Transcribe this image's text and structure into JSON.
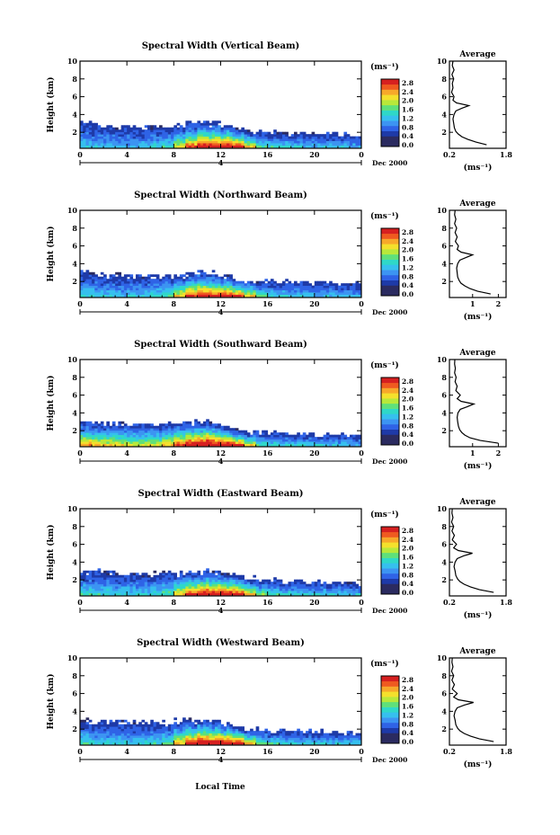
{
  "figure": {
    "xlabel": "Local Time",
    "date_label": "Dec 2000",
    "day_marker": "4",
    "colorbar_unit": "(ms⁻¹)",
    "average_title": "Average",
    "average_xunit": "(ms⁻¹)",
    "colormap": [
      "#2b2b60",
      "#1e3aa8",
      "#2f63e6",
      "#3c94f2",
      "#36c0ee",
      "#2fd8c8",
      "#5fe07a",
      "#b8e83a",
      "#f4e02c",
      "#f7a82a",
      "#ef5a20",
      "#d62020"
    ]
  },
  "chart_data": [
    {
      "type": "heatmap",
      "title": "Spectral Width (Vertical Beam)",
      "ylabel": "Height (km)",
      "x_ticks": [
        "0",
        "4",
        "8",
        "12",
        "16",
        "20",
        "0"
      ],
      "xlim": [
        0,
        24
      ],
      "y_ticks": [
        "2",
        "4",
        "6",
        "8",
        "10"
      ],
      "ylim": [
        0.2,
        10
      ],
      "colorbar_ticks": [
        "2.8",
        "2.4",
        "2.0",
        "1.6",
        "1.2",
        "0.8",
        "0.4",
        "0.0"
      ],
      "colorbar_range": [
        0,
        2.8
      ],
      "layer_top_km": [
        3.0,
        2.8,
        2.7,
        2.6,
        2.6,
        2.5,
        2.6,
        2.7,
        2.8,
        3.0,
        3.2,
        3.0,
        2.8,
        2.4,
        2.1,
        2.0,
        2.0,
        1.9,
        1.9,
        1.8,
        1.8,
        1.8,
        1.7,
        1.6
      ],
      "peak_width_ms": [
        0.8,
        0.7,
        0.7,
        0.6,
        0.6,
        0.7,
        0.8,
        1.0,
        1.6,
        2.2,
        2.6,
        2.5,
        2.6,
        2.4,
        1.8,
        1.2,
        0.9,
        0.8,
        0.8,
        0.7,
        0.7,
        0.7,
        0.7,
        0.6
      ],
      "average": {
        "x_ticks": [
          "0.2",
          "1.8"
        ],
        "xlim": [
          0.2,
          1.8
        ],
        "y_ticks": [
          "2",
          "4",
          "6",
          "8",
          "10"
        ],
        "ylim": [
          0.2,
          10
        ],
        "height_km": [
          0.6,
          0.9,
          1.2,
          1.5,
          1.8,
          2.1,
          2.5,
          3.0,
          3.5,
          4.0,
          4.4,
          4.7,
          5.0,
          5.3,
          5.6,
          6.0,
          6.5,
          7.0,
          7.5,
          8.0,
          8.5,
          9.0,
          9.5,
          10.0
        ],
        "width_ms": [
          1.25,
          0.95,
          0.72,
          0.55,
          0.45,
          0.38,
          0.34,
          0.32,
          0.3,
          0.33,
          0.38,
          0.55,
          0.75,
          0.4,
          0.3,
          0.33,
          0.26,
          0.3,
          0.28,
          0.32,
          0.27,
          0.33,
          0.28,
          0.3
        ]
      }
    },
    {
      "type": "heatmap",
      "title": "Spectral Width (Northward Beam)",
      "ylabel": "Height (km)",
      "x_ticks": [
        "0",
        "4",
        "8",
        "12",
        "16",
        "20",
        "0"
      ],
      "xlim": [
        0,
        24
      ],
      "y_ticks": [
        "2",
        "4",
        "6",
        "8",
        "10"
      ],
      "ylim": [
        0.2,
        10
      ],
      "colorbar_ticks": [
        "2.8",
        "2.4",
        "2.0",
        "1.6",
        "1.2",
        "0.8",
        "0.4",
        "0.0"
      ],
      "colorbar_range": [
        0,
        2.8
      ],
      "layer_top_km": [
        3.0,
        2.9,
        2.8,
        2.7,
        2.7,
        2.6,
        2.6,
        2.7,
        2.8,
        3.0,
        3.1,
        2.9,
        2.6,
        2.2,
        2.0,
        1.9,
        1.9,
        1.9,
        1.9,
        1.8,
        1.8,
        1.8,
        1.8,
        1.7
      ],
      "peak_width_ms": [
        0.9,
        0.8,
        0.8,
        0.7,
        0.7,
        0.8,
        0.9,
        1.1,
        1.7,
        2.3,
        2.5,
        2.4,
        2.5,
        2.3,
        1.7,
        1.1,
        0.9,
        0.8,
        0.8,
        0.8,
        0.7,
        0.7,
        0.7,
        0.6
      ],
      "average": {
        "x_ticks": [
          "1",
          "2"
        ],
        "xlim": [
          0.1,
          2.3
        ],
        "y_ticks": [
          "2",
          "4",
          "6",
          "8",
          "10"
        ],
        "ylim": [
          0.2,
          10
        ],
        "height_km": [
          0.6,
          0.9,
          1.2,
          1.5,
          1.8,
          2.1,
          2.5,
          3.0,
          3.5,
          4.0,
          4.4,
          4.7,
          5.0,
          5.3,
          5.6,
          6.0,
          6.5,
          7.0,
          7.5,
          8.0,
          8.5,
          9.0,
          9.5,
          10.0
        ],
        "width_ms": [
          1.7,
          1.2,
          0.9,
          0.7,
          0.55,
          0.48,
          0.42,
          0.4,
          0.38,
          0.42,
          0.5,
          0.75,
          1.0,
          0.55,
          0.4,
          0.45,
          0.33,
          0.4,
          0.32,
          0.38,
          0.3,
          0.35,
          0.3,
          0.32
        ]
      }
    },
    {
      "type": "heatmap",
      "title": "Spectral Width (Southward Beam)",
      "ylabel": "Height (km)",
      "x_ticks": [
        "0",
        "4",
        "8",
        "12",
        "16",
        "20",
        "0"
      ],
      "xlim": [
        0,
        24
      ],
      "y_ticks": [
        "2",
        "4",
        "6",
        "8",
        "10"
      ],
      "ylim": [
        0.2,
        10
      ],
      "colorbar_ticks": [
        "2.8",
        "2.4",
        "2.0",
        "1.6",
        "1.2",
        "0.8",
        "0.4",
        "0.0"
      ],
      "colorbar_range": [
        0,
        2.8
      ],
      "layer_top_km": [
        3.0,
        2.9,
        2.8,
        2.8,
        2.7,
        2.7,
        2.7,
        2.8,
        2.9,
        3.0,
        3.1,
        2.8,
        2.4,
        2.1,
        1.9,
        1.8,
        1.7,
        1.6,
        1.6,
        1.5,
        1.5,
        1.5,
        1.5,
        1.4
      ],
      "peak_width_ms": [
        2.0,
        1.8,
        1.7,
        1.6,
        1.5,
        1.5,
        1.6,
        1.8,
        2.2,
        2.7,
        2.8,
        2.6,
        2.6,
        2.4,
        1.6,
        1.0,
        0.9,
        0.8,
        0.8,
        0.8,
        0.8,
        0.7,
        0.7,
        0.6
      ],
      "average": {
        "x_ticks": [
          "1",
          "2"
        ],
        "xlim": [
          0.1,
          2.3
        ],
        "y_ticks": [
          "2",
          "4",
          "6",
          "8",
          "10"
        ],
        "ylim": [
          0.2,
          10
        ],
        "height_km": [
          0.6,
          0.9,
          1.2,
          1.5,
          1.8,
          2.1,
          2.5,
          3.0,
          3.5,
          4.0,
          4.4,
          4.7,
          5.0,
          5.3,
          5.6,
          6.0,
          6.5,
          7.0,
          7.5,
          8.0,
          8.5,
          9.0,
          9.5,
          10.0
        ],
        "width_ms": [
          2.0,
          1.3,
          0.9,
          0.7,
          0.58,
          0.5,
          0.45,
          0.42,
          0.4,
          0.43,
          0.52,
          0.8,
          1.05,
          0.55,
          0.4,
          0.52,
          0.35,
          0.4,
          0.32,
          0.36,
          0.3,
          0.33,
          0.3,
          0.31
        ]
      }
    },
    {
      "type": "heatmap",
      "title": "Spectral Width (Eastward Beam)",
      "ylabel": "Height (km)",
      "x_ticks": [
        "0",
        "4",
        "8",
        "12",
        "16",
        "20",
        "0"
      ],
      "xlim": [
        0,
        24
      ],
      "y_ticks": [
        "2",
        "4",
        "6",
        "8",
        "10"
      ],
      "ylim": [
        0.2,
        10
      ],
      "colorbar_ticks": [
        "2.8",
        "2.4",
        "2.0",
        "1.6",
        "1.2",
        "0.8",
        "0.4",
        "0.0"
      ],
      "colorbar_range": [
        0,
        2.8
      ],
      "layer_top_km": [
        3.0,
        2.9,
        2.8,
        2.8,
        2.7,
        2.7,
        2.7,
        2.8,
        2.8,
        2.9,
        3.1,
        3.0,
        2.8,
        2.5,
        2.2,
        2.0,
        1.9,
        1.9,
        1.8,
        1.8,
        1.8,
        1.7,
        1.7,
        1.6
      ],
      "peak_width_ms": [
        1.0,
        0.9,
        0.9,
        0.8,
        0.8,
        0.8,
        0.9,
        1.1,
        1.7,
        2.3,
        2.6,
        2.5,
        2.6,
        2.4,
        1.8,
        1.2,
        1.0,
        0.9,
        0.8,
        0.8,
        0.8,
        0.7,
        0.7,
        0.7
      ],
      "average": {
        "x_ticks": [
          "0.2",
          "1.8"
        ],
        "xlim": [
          0.2,
          1.8
        ],
        "y_ticks": [
          "2",
          "4",
          "6",
          "8",
          "10"
        ],
        "ylim": [
          0.2,
          10
        ],
        "height_km": [
          0.6,
          0.9,
          1.2,
          1.5,
          1.8,
          2.1,
          2.5,
          3.0,
          3.5,
          4.0,
          4.4,
          4.7,
          5.0,
          5.3,
          5.6,
          6.0,
          6.5,
          7.0,
          7.5,
          8.0,
          8.5,
          9.0,
          9.5,
          10.0
        ],
        "width_ms": [
          1.45,
          1.05,
          0.8,
          0.62,
          0.5,
          0.43,
          0.38,
          0.36,
          0.33,
          0.36,
          0.42,
          0.6,
          0.85,
          0.45,
          0.32,
          0.4,
          0.28,
          0.34,
          0.27,
          0.32,
          0.26,
          0.3,
          0.27,
          0.28
        ]
      }
    },
    {
      "type": "heatmap",
      "title": "Spectral Width (Westward Beam)",
      "ylabel": "Height (km)",
      "x_ticks": [
        "0",
        "4",
        "8",
        "12",
        "16",
        "20",
        "0"
      ],
      "xlim": [
        0,
        24
      ],
      "y_ticks": [
        "2",
        "4",
        "6",
        "8",
        "10"
      ],
      "ylim": [
        0.2,
        10
      ],
      "colorbar_ticks": [
        "2.8",
        "2.4",
        "2.0",
        "1.6",
        "1.2",
        "0.8",
        "0.4",
        "0.0"
      ],
      "colorbar_range": [
        0,
        2.8
      ],
      "layer_top_km": [
        3.0,
        2.9,
        2.8,
        2.8,
        2.7,
        2.7,
        2.7,
        2.8,
        2.9,
        3.0,
        3.1,
        2.9,
        2.6,
        2.3,
        2.0,
        1.9,
        1.8,
        1.8,
        1.8,
        1.7,
        1.7,
        1.7,
        1.6,
        1.6
      ],
      "peak_width_ms": [
        1.0,
        0.9,
        0.9,
        0.8,
        0.8,
        0.8,
        0.9,
        1.1,
        1.8,
        2.4,
        2.7,
        2.6,
        2.6,
        2.4,
        1.8,
        1.2,
        1.0,
        0.9,
        0.8,
        0.8,
        0.8,
        0.7,
        0.7,
        0.7
      ],
      "average": {
        "x_ticks": [
          "0.2",
          "1.8"
        ],
        "xlim": [
          0.2,
          1.8
        ],
        "y_ticks": [
          "2",
          "4",
          "6",
          "8",
          "10"
        ],
        "ylim": [
          0.2,
          10
        ],
        "height_km": [
          0.6,
          0.9,
          1.2,
          1.5,
          1.8,
          2.1,
          2.5,
          3.0,
          3.5,
          4.0,
          4.4,
          4.7,
          5.0,
          5.3,
          5.6,
          6.0,
          6.5,
          7.0,
          7.5,
          8.0,
          8.5,
          9.0,
          9.5,
          10.0
        ],
        "width_ms": [
          1.45,
          1.05,
          0.8,
          0.62,
          0.5,
          0.43,
          0.38,
          0.36,
          0.33,
          0.36,
          0.42,
          0.62,
          0.88,
          0.45,
          0.32,
          0.42,
          0.28,
          0.34,
          0.27,
          0.32,
          0.26,
          0.3,
          0.27,
          0.28
        ]
      }
    }
  ]
}
